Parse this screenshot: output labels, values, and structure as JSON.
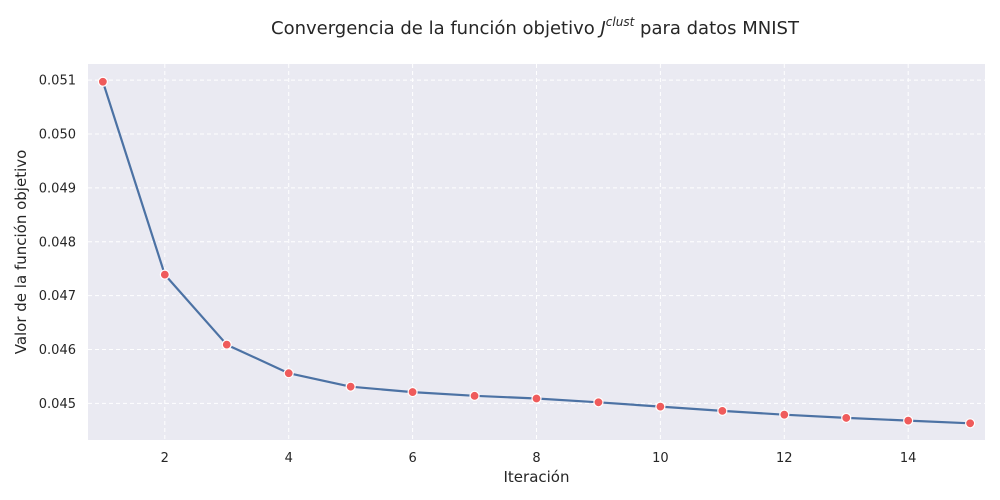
{
  "chart_data": {
    "type": "line",
    "title": {
      "prefix": "Convergencia de la función objetivo ",
      "symbol": "J",
      "superscript": "clust",
      "suffix": " para datos MNIST"
    },
    "xlabel": "Iteración",
    "ylabel": "Valor de la función objetivo",
    "xlim": [
      0.76,
      15.24
    ],
    "ylim": [
      0.04432,
      0.0513
    ],
    "xticks": [
      2,
      4,
      6,
      8,
      10,
      12,
      14
    ],
    "yticks": [
      0.045,
      0.046,
      0.047,
      0.048,
      0.049,
      0.05,
      0.051
    ],
    "ytick_labels": [
      "0.045",
      "0.046",
      "0.047",
      "0.048",
      "0.049",
      "0.050",
      "0.051"
    ],
    "grid": true,
    "series": [
      {
        "x": [
          1,
          2,
          3,
          4,
          5,
          6,
          7,
          8,
          9,
          10,
          11,
          12,
          13,
          14,
          15
        ],
        "y": [
          0.05097,
          0.04739,
          0.04609,
          0.04556,
          0.04531,
          0.04521,
          0.04514,
          0.04509,
          0.04502,
          0.04494,
          0.04486,
          0.04479,
          0.04473,
          0.04468,
          0.04463
        ]
      }
    ],
    "colors": {
      "line": "#4c72a4",
      "marker": "#ef5b5b",
      "marker_edge": "#ffffff",
      "background": "#eaeaf2",
      "grid": "#ffffff"
    }
  }
}
